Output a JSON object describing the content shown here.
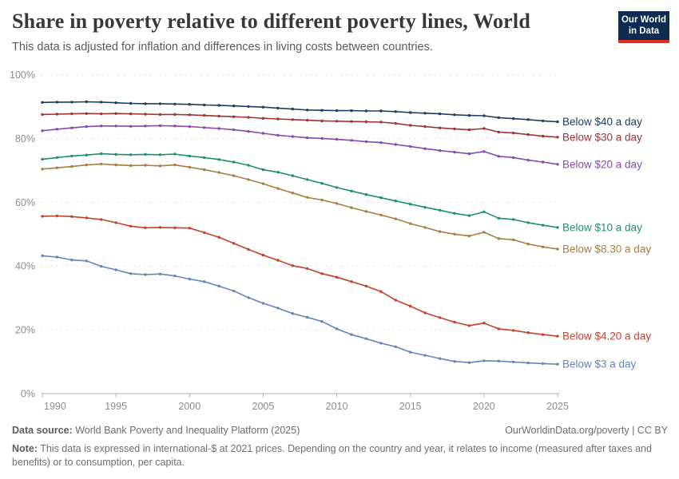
{
  "header": {
    "title": "Share in poverty relative to different poverty lines, World",
    "subtitle": "This data is adjusted for inflation and differences in living costs between countries."
  },
  "logo": {
    "line1": "Our World",
    "line2": "in Data",
    "bg": "#0e2c52",
    "accent": "#dc3023"
  },
  "footer": {
    "data_source_label": "Data source:",
    "data_source": "World Bank Poverty and Inequality Platform (2025)",
    "attribution": "OurWorldinData.org/poverty | CC BY",
    "note_label": "Note:",
    "note": "This data is expressed in international-$ at 2021 prices. Depending on the country and year, it relates to income (measured after taxes and benefits) or to consumption, per capita."
  },
  "chart_data": {
    "type": "line",
    "title": "Share in poverty relative to different poverty lines, World",
    "xlabel": "",
    "ylabel": "",
    "ylim": [
      0,
      100
    ],
    "yticks": [
      0,
      20,
      40,
      60,
      80,
      100
    ],
    "ytick_suffix": "%",
    "xticks": [
      1990,
      1995,
      2000,
      2005,
      2010,
      2015,
      2020,
      2025
    ],
    "grid": "horizontal-dashed",
    "legend": "line-end-labels",
    "x": [
      1990,
      1991,
      1992,
      1993,
      1994,
      1995,
      1996,
      1997,
      1998,
      1999,
      2000,
      2001,
      2002,
      2003,
      2004,
      2005,
      2006,
      2007,
      2008,
      2009,
      2010,
      2011,
      2012,
      2013,
      2014,
      2015,
      2016,
      2017,
      2018,
      2019,
      2020,
      2021,
      2022,
      2023,
      2024,
      2025
    ],
    "series": [
      {
        "name": "Below $40 a day",
        "color": "#1d3d63",
        "values": [
          91.3,
          91.4,
          91.4,
          91.5,
          91.4,
          91.2,
          91.0,
          90.9,
          90.9,
          90.8,
          90.7,
          90.5,
          90.4,
          90.2,
          90.0,
          89.8,
          89.5,
          89.2,
          88.9,
          88.8,
          88.7,
          88.7,
          88.6,
          88.6,
          88.4,
          88.1,
          87.9,
          87.7,
          87.4,
          87.2,
          87.1,
          86.5,
          86.2,
          85.9,
          85.5,
          85.2
        ]
      },
      {
        "name": "Below $30 a day",
        "color": "#a03331",
        "values": [
          87.5,
          87.6,
          87.7,
          87.8,
          87.7,
          87.8,
          87.7,
          87.6,
          87.5,
          87.5,
          87.4,
          87.2,
          87.0,
          86.8,
          86.6,
          86.3,
          86.1,
          85.9,
          85.7,
          85.5,
          85.4,
          85.3,
          85.2,
          85.1,
          84.7,
          84.1,
          83.7,
          83.3,
          83.0,
          82.7,
          83.1,
          82.0,
          81.7,
          81.2,
          80.7,
          80.4
        ]
      },
      {
        "name": "Below $20 a day",
        "color": "#8847b4",
        "values": [
          82.4,
          82.9,
          83.3,
          83.7,
          83.9,
          83.9,
          83.8,
          83.9,
          84.0,
          83.9,
          83.7,
          83.4,
          83.1,
          82.7,
          82.2,
          81.6,
          81.0,
          80.6,
          80.2,
          80.0,
          79.7,
          79.4,
          79.0,
          78.7,
          78.1,
          77.5,
          76.8,
          76.2,
          75.7,
          75.2,
          75.9,
          74.4,
          74.0,
          73.2,
          72.6,
          71.9
        ]
      },
      {
        "name": "Below $10 a day",
        "color": "#1e8f6e",
        "values": [
          73.5,
          74.0,
          74.5,
          74.8,
          75.2,
          75.0,
          74.9,
          75.0,
          74.9,
          75.1,
          74.5,
          74.0,
          73.4,
          72.6,
          71.6,
          70.2,
          69.4,
          68.3,
          67.1,
          65.9,
          64.6,
          63.5,
          62.4,
          61.4,
          60.4,
          59.4,
          58.4,
          57.5,
          56.5,
          55.8,
          57.0,
          55.0,
          54.6,
          53.6,
          52.8,
          52.1
        ]
      },
      {
        "name": "Below $8.30 a day",
        "color": "#a97c3f",
        "values": [
          70.4,
          70.8,
          71.2,
          71.7,
          72.0,
          71.7,
          71.5,
          71.6,
          71.4,
          71.7,
          71.0,
          70.2,
          69.3,
          68.3,
          67.1,
          65.8,
          64.3,
          62.9,
          61.5,
          60.7,
          59.6,
          58.3,
          57.1,
          56.0,
          54.8,
          53.3,
          52.1,
          50.8,
          50.0,
          49.4,
          50.6,
          48.6,
          48.2,
          46.9,
          46.0,
          45.3
        ]
      },
      {
        "name": "Below $4.20 a day",
        "color": "#c2422b",
        "values": [
          55.6,
          55.7,
          55.5,
          55.1,
          54.6,
          53.6,
          52.5,
          52.0,
          52.1,
          52.0,
          51.9,
          50.5,
          49.0,
          47.1,
          45.2,
          43.4,
          41.8,
          40.1,
          39.2,
          37.6,
          36.5,
          35.1,
          33.7,
          32.0,
          29.3,
          27.4,
          25.3,
          23.8,
          22.4,
          21.3,
          22.1,
          20.3,
          19.8,
          19.1,
          18.5,
          18.0
        ]
      },
      {
        "name": "Below $3 a day",
        "color": "#6385b8",
        "values": [
          43.2,
          42.8,
          41.9,
          41.6,
          39.9,
          38.8,
          37.6,
          37.3,
          37.5,
          36.9,
          35.9,
          35.1,
          33.7,
          32.2,
          30.1,
          28.3,
          26.8,
          25.1,
          23.9,
          22.6,
          20.3,
          18.5,
          17.2,
          15.8,
          14.7,
          13.0,
          12.0,
          11.0,
          10.1,
          9.7,
          10.3,
          10.2,
          9.9,
          9.6,
          9.4,
          9.2
        ]
      }
    ]
  }
}
